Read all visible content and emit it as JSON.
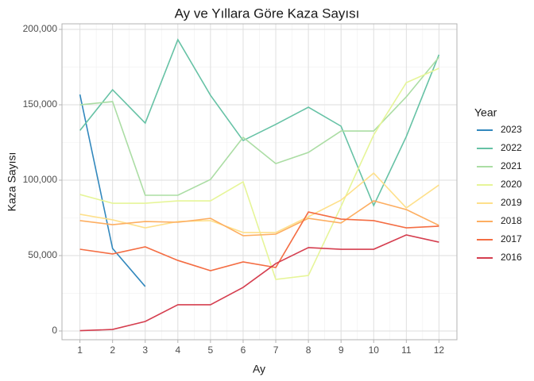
{
  "chart_data": {
    "type": "line",
    "title": "Ay ve Yıllara Göre Kaza Sayısı",
    "x_label": "Ay",
    "y_label": "Kaza Sayısı",
    "legend_title": "Year",
    "legend_position": "right",
    "grid": true,
    "x": [
      1,
      2,
      3,
      4,
      5,
      6,
      7,
      8,
      9,
      10,
      11,
      12
    ],
    "xlim": [
      0.45,
      12.55
    ],
    "xticks": [
      1,
      2,
      3,
      4,
      5,
      6,
      7,
      8,
      9,
      10,
      11,
      12
    ],
    "ylim": [
      -5800,
      203700
    ],
    "yticks": [
      0,
      {
        "value": 50000,
        "label": "50,000"
      },
      {
        "value": 100000,
        "label": "100,000"
      },
      {
        "value": 150000,
        "label": "150,000"
      },
      {
        "value": 200000,
        "label": "200,000"
      }
    ],
    "series": [
      {
        "name": "2023",
        "color": "#3288bd",
        "values": [
          156800,
          54700,
          29500,
          null,
          null,
          null,
          null,
          null,
          null,
          null,
          null,
          null
        ]
      },
      {
        "name": "2022",
        "color": "#66c2a5",
        "values": [
          133000,
          160000,
          137900,
          193200,
          156300,
          126300,
          137000,
          148400,
          135800,
          83200,
          129000,
          183200
        ]
      },
      {
        "name": "2021",
        "color": "#abdda4",
        "values": [
          150000,
          152100,
          90000,
          90000,
          100500,
          128400,
          111000,
          118400,
          132600,
          132600,
          155300,
          181600
        ]
      },
      {
        "name": "2020",
        "color": "#e6f598",
        "values": [
          90500,
          84700,
          84700,
          86300,
          86300,
          98900,
          34200,
          36800,
          82600,
          130000,
          164700,
          174200
        ]
      },
      {
        "name": "2019",
        "color": "#fee08b",
        "values": [
          77400,
          73700,
          68400,
          72600,
          73200,
          65300,
          65300,
          75800,
          86800,
          104700,
          81600,
          96800
        ]
      },
      {
        "name": "2018",
        "color": "#fdae61",
        "values": [
          73200,
          70500,
          72600,
          72100,
          74700,
          63200,
          64200,
          74700,
          71600,
          86300,
          80500,
          70000
        ]
      },
      {
        "name": "2017",
        "color": "#f46d43",
        "values": [
          54200,
          51100,
          55800,
          46800,
          40000,
          45800,
          42100,
          78900,
          74200,
          73200,
          68400,
          69500
        ]
      },
      {
        "name": "2016",
        "color": "#d53e4f",
        "values": [
          200,
          1000,
          6300,
          17400,
          17400,
          28900,
          44700,
          55300,
          54200,
          54200,
          63700,
          58900
        ]
      }
    ]
  }
}
